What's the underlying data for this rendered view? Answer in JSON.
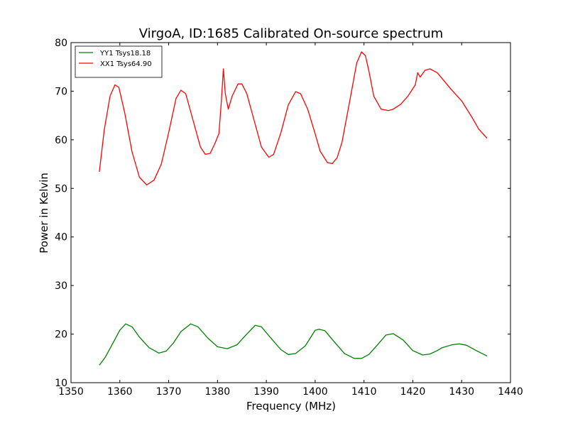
{
  "chart_data": {
    "type": "line",
    "title": "VirgoA, ID:1685 Calibrated On-source spectrum",
    "xlabel": "Frequency (MHz)",
    "ylabel": "Power in Kelvin",
    "xlim": [
      1350,
      1440
    ],
    "ylim": [
      10,
      80
    ],
    "xticks": [
      1350,
      1360,
      1370,
      1380,
      1390,
      1400,
      1410,
      1420,
      1430,
      1440
    ],
    "yticks": [
      10,
      20,
      30,
      40,
      50,
      60,
      70,
      80
    ],
    "grid": false,
    "legend_position": "top-left",
    "series": [
      {
        "name": "YY1 Tsys18.18",
        "color": "#008000",
        "x": [
          1355.8,
          1357,
          1358.5,
          1360,
          1361.2,
          1362.5,
          1364,
          1366,
          1368,
          1369.5,
          1371,
          1372.5,
          1374.5,
          1376,
          1378,
          1380,
          1382,
          1384,
          1386,
          1387.7,
          1389,
          1391,
          1393,
          1394.5,
          1396,
          1398,
          1400,
          1400.8,
          1402,
          1404,
          1406,
          1408,
          1409.5,
          1411,
          1412.5,
          1414.5,
          1416,
          1418,
          1420,
          1422,
          1423.5,
          1425,
          1426,
          1428,
          1429.5,
          1431,
          1433,
          1435.2
        ],
        "values": [
          13.6,
          15.2,
          18,
          20.8,
          22.1,
          21.5,
          19.4,
          17.2,
          16.1,
          16.5,
          18.2,
          20.5,
          22.1,
          21.5,
          19.2,
          17.4,
          17,
          17.8,
          20,
          21.8,
          21.5,
          19.1,
          16.8,
          15.8,
          16,
          17.6,
          20.8,
          21,
          20.7,
          18.3,
          16,
          15,
          15,
          15.8,
          17.5,
          19.8,
          20.1,
          18.8,
          16.6,
          15.7,
          15.9,
          16.6,
          17.2,
          17.8,
          18,
          17.7,
          16.6,
          15.5
        ]
      },
      {
        "name": "XX1 Tsys64.90",
        "color": "#ff0000",
        "x": [
          1355.8,
          1356.8,
          1358,
          1359,
          1359.8,
          1361,
          1362.5,
          1364,
          1365.5,
          1367,
          1368.5,
          1370,
          1371.5,
          1372.5,
          1373.5,
          1375,
          1376.5,
          1377.5,
          1378.5,
          1379.5,
          1380.3,
          1380.8,
          1381.2,
          1381.6,
          1382.2,
          1383,
          1384.2,
          1385,
          1386,
          1387.5,
          1389,
          1390.5,
          1391.5,
          1393,
          1394.5,
          1396,
          1397,
          1398.5,
          1400,
          1401,
          1402.5,
          1403.5,
          1404.5,
          1405.5,
          1407,
          1408.5,
          1409.5,
          1410.3,
          1411,
          1412,
          1413.5,
          1415,
          1416,
          1417.5,
          1419,
          1420.5,
          1421,
          1421.5,
          1422.5,
          1423.5,
          1425,
          1426.5,
          1428,
          1430,
          1432,
          1433.5,
          1435.2
        ],
        "values": [
          53.4,
          62,
          69,
          71.3,
          70.8,
          65.5,
          57.5,
          52.3,
          50.7,
          51.7,
          55,
          61.5,
          68.5,
          70.2,
          69.5,
          64,
          58.5,
          57,
          57.2,
          59.3,
          61.3,
          68,
          74.6,
          69.5,
          66.3,
          69,
          71.5,
          71.5,
          69.5,
          64,
          58.5,
          56.4,
          57,
          61.5,
          67.2,
          69.9,
          69.5,
          66.2,
          61.2,
          57.7,
          55.3,
          55.1,
          56.3,
          59.5,
          67.5,
          75.8,
          78.1,
          77.3,
          74.2,
          69,
          66.3,
          66,
          66.3,
          67.3,
          69,
          71.3,
          73.8,
          72.9,
          74.3,
          74.6,
          73.8,
          72,
          70.2,
          68,
          64.8,
          62.2,
          60.3
        ]
      }
    ]
  }
}
